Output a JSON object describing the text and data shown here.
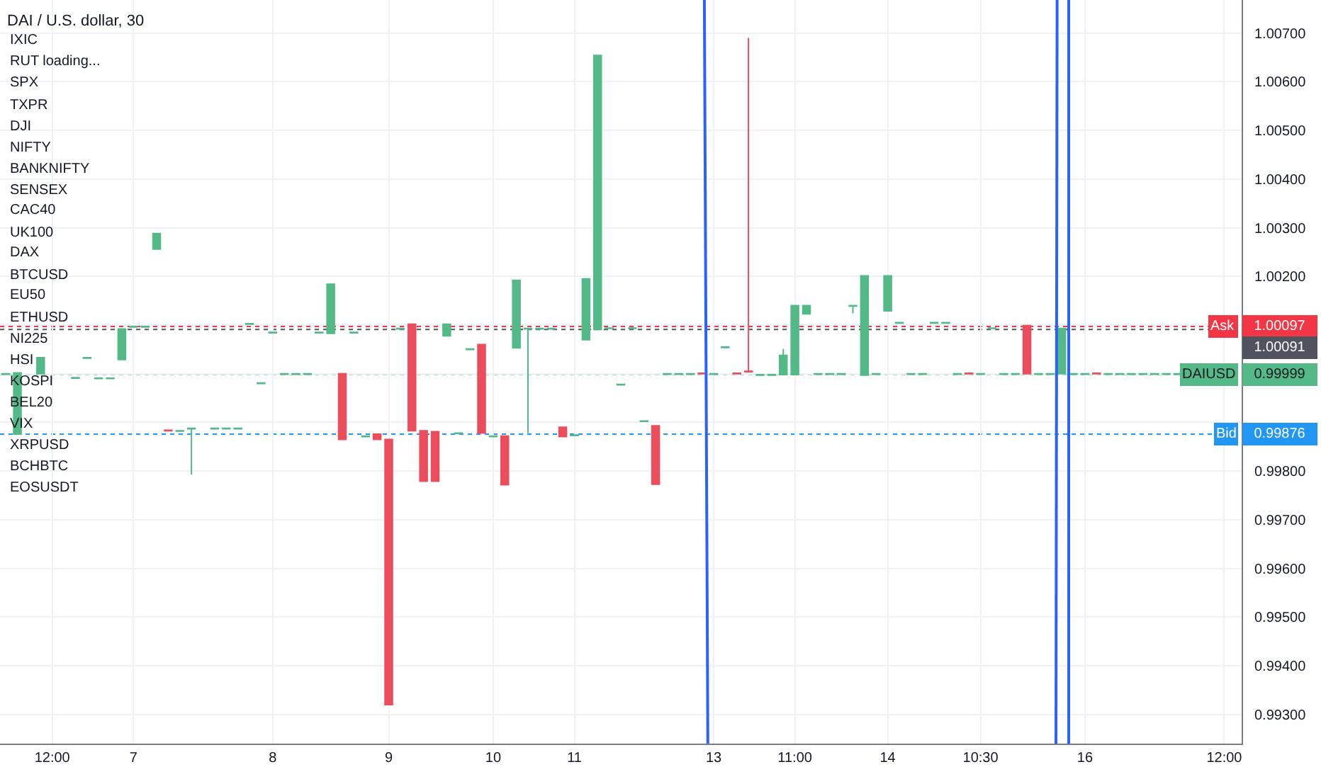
{
  "chart_data": {
    "type": "candlestick",
    "title": "DAI / U.S. dollar, 30",
    "annotations": [
      "IXIC",
      "RUT loading...",
      "SPX",
      "TXPR",
      "DJI",
      "NIFTY",
      "BANKNIFTY",
      "SENSEX",
      "CAC40",
      "UK100",
      "DAX",
      "BTCUSD",
      "EU50",
      "ETHUSD",
      "NI225",
      "HSI",
      "KOSPI",
      "BEL20",
      "VIX",
      "XRPUSD",
      "BCHBTC",
      "EOSUSDT"
    ],
    "categories": [
      null,
      null,
      null,
      null,
      "12:00",
      null,
      null,
      null,
      null,
      null,
      null,
      "7",
      null,
      null,
      null,
      null,
      null,
      null,
      null,
      null,
      null,
      null,
      null,
      "8",
      null,
      null,
      null,
      null,
      null,
      null,
      null,
      null,
      null,
      "9",
      null,
      null,
      null,
      null,
      null,
      null,
      null,
      null,
      "10",
      null,
      null,
      null,
      null,
      null,
      null,
      "11",
      null,
      null,
      null,
      null,
      null,
      null,
      null,
      null,
      null,
      null,
      null,
      "13",
      null,
      null,
      null,
      null,
      null,
      null,
      "11:00",
      null,
      null,
      null,
      null,
      null,
      null,
      null,
      "14",
      null,
      null,
      null,
      null,
      null,
      null,
      null,
      "10:30",
      null,
      null,
      null,
      null,
      null,
      null,
      null,
      null,
      "16",
      null,
      null,
      null,
      null,
      null,
      null,
      null,
      null,
      null,
      null,
      null,
      "12:00",
      null
    ],
    "ohlc": [
      [
        0.99999,
        1.0,
        0.99999,
        1.0
      ],
      [
        0.99876,
        1.00002,
        0.99876,
        1.00002
      ],
      null,
      [
        1.0,
        1.00033,
        1.0,
        1.00033
      ],
      null,
      null,
      [
        0.99991,
        0.99992,
        0.99991,
        0.99992
      ],
      [
        1.00032,
        1.00033,
        1.00032,
        1.00033
      ],
      [
        0.9999,
        0.99991,
        0.9999,
        0.99991
      ],
      [
        0.9999,
        0.99991,
        0.9999,
        0.99991
      ],
      [
        1.00029,
        1.00092,
        1.00029,
        1.00092
      ],
      [
        1.00096,
        1.00097,
        1.00096,
        1.00097
      ],
      [
        1.00096,
        1.00097,
        1.00096,
        1.00097
      ],
      [
        1.00256,
        1.00288,
        1.00256,
        1.00288
      ],
      [
        0.99884,
        0.99884,
        0.99883,
        0.99883
      ],
      [
        0.99882,
        0.99883,
        0.99882,
        0.99883
      ],
      [
        0.99887,
        0.99888,
        0.99793,
        0.99888
      ],
      null,
      [
        0.99887,
        0.99888,
        0.99887,
        0.99888
      ],
      [
        0.99887,
        0.99888,
        0.99887,
        0.99888
      ],
      [
        0.99887,
        0.99888,
        0.99887,
        0.99888
      ],
      [
        1.00102,
        1.00103,
        1.00102,
        1.00103
      ],
      [
        0.9998,
        0.99981,
        0.9998,
        0.99981
      ],
      [
        1.00084,
        1.00085,
        1.00084,
        1.00085
      ],
      [
        0.99999,
        1.0,
        0.99999,
        1.0
      ],
      [
        0.99999,
        1.0,
        0.99999,
        1.0
      ],
      [
        0.99999,
        1.0,
        0.99999,
        1.0
      ],
      [
        1.00084,
        1.00085,
        1.00084,
        1.00085
      ],
      [
        1.00083,
        1.00184,
        1.00083,
        1.00184
      ],
      [
        1.0,
        1.0,
        0.99865,
        0.99865
      ],
      [
        1.00084,
        1.00085,
        1.00084,
        1.00085
      ],
      [
        0.99871,
        0.99872,
        0.99871,
        0.99872
      ],
      [
        0.99876,
        0.99876,
        0.99865,
        0.99865
      ],
      [
        0.99865,
        0.99865,
        0.9932,
        0.9932
      ],
      [
        1.00092,
        1.00093,
        1.00092,
        1.00093
      ],
      [
        1.00102,
        1.00102,
        0.99883,
        0.99883
      ],
      [
        0.99883,
        0.99883,
        0.99779,
        0.99779
      ],
      [
        0.99881,
        0.99881,
        0.99779,
        0.99779
      ],
      [
        1.00078,
        1.00102,
        1.00078,
        1.00102
      ],
      [
        0.99877,
        0.99878,
        0.99877,
        0.99878
      ],
      [
        1.0005,
        1.00051,
        1.0005,
        1.00051
      ],
      [
        1.0006,
        1.0006,
        0.99878,
        0.99878
      ],
      [
        0.99871,
        0.99872,
        0.99871,
        0.99872
      ],
      [
        0.99872,
        0.99872,
        0.99772,
        0.99772
      ],
      [
        1.00053,
        1.00192,
        1.00053,
        1.00192
      ],
      [
        1.00092,
        1.00093,
        0.99878,
        1.00093
      ],
      [
        1.00092,
        1.00093,
        1.00092,
        1.00093
      ],
      [
        1.00092,
        1.00093,
        1.00092,
        1.00093
      ],
      [
        0.9989,
        0.9989,
        0.99871,
        0.99871
      ],
      [
        0.99873,
        0.99874,
        0.99873,
        0.99874
      ],
      [
        1.0007,
        1.00195,
        1.0007,
        1.00195
      ],
      [
        1.00091,
        1.00654,
        1.00091,
        1.00654
      ],
      [
        1.00093,
        1.00094,
        1.00093,
        1.00094
      ],
      [
        0.99977,
        0.99978,
        0.99977,
        0.99978
      ],
      [
        1.00093,
        1.00094,
        1.00093,
        1.00094
      ],
      [
        0.99902,
        0.99903,
        0.99902,
        0.99903
      ],
      [
        0.99893,
        0.99893,
        0.99773,
        0.99773
      ],
      [
        0.99999,
        1.0,
        0.99999,
        1.0
      ],
      [
        0.99999,
        1.0,
        0.99999,
        1.0
      ],
      [
        0.99999,
        1.0,
        0.99999,
        1.0
      ],
      [
        1.00001,
        1.00001,
        1.0,
        1.0
      ],
      [
        0.99999,
        1.0,
        0.99999,
        1.0
      ],
      [
        1.00054,
        1.00055,
        1.00054,
        1.00055
      ],
      [
        1.00001,
        1.00001,
        1.0,
        1.0
      ],
      [
        1.00005,
        1.0069,
        1.00004,
        1.00004
      ],
      [
        0.99997,
        0.99998,
        0.99997,
        0.99998
      ],
      [
        0.99997,
        0.99998,
        0.99997,
        0.99998
      ],
      [
        0.99998,
        1.00051,
        0.99998,
        1.00038
      ],
      [
        0.99998,
        1.0014,
        0.99998,
        1.0014
      ],
      [
        1.00123,
        1.0014,
        1.00123,
        1.0014
      ],
      [
        0.99999,
        1.0,
        0.99999,
        1.0
      ],
      [
        0.99999,
        1.0,
        0.99999,
        1.0
      ],
      [
        0.99999,
        1.0,
        0.99999,
        1.0
      ],
      [
        1.00139,
        1.0014,
        1.00124,
        1.0014
      ],
      [
        0.99997,
        1.00201,
        0.99997,
        1.00201
      ],
      [
        0.99999,
        1.0,
        0.99999,
        1.0
      ],
      [
        1.00129,
        1.00201,
        1.00129,
        1.00201
      ],
      [
        1.00104,
        1.00105,
        1.00104,
        1.00105
      ],
      [
        0.99999,
        1.0,
        0.99999,
        1.0
      ],
      [
        0.99999,
        1.0,
        0.99999,
        1.0
      ],
      [
        1.00104,
        1.00105,
        1.00104,
        1.00105
      ],
      [
        1.00104,
        1.00105,
        1.00104,
        1.00105
      ],
      [
        0.99999,
        1.0,
        0.99999,
        1.0
      ],
      [
        1.00001,
        1.00001,
        1.0,
        1.0
      ],
      [
        0.99999,
        1.0,
        0.99999,
        1.0
      ],
      [
        1.00093,
        1.00094,
        1.00093,
        1.00094
      ],
      [
        0.99999,
        1.0,
        0.99999,
        1.0
      ],
      [
        0.99999,
        1.0,
        0.99999,
        1.0
      ],
      [
        1.00099,
        1.00099,
        1.0,
        1.0
      ],
      [
        0.99999,
        1.0,
        0.99999,
        1.0
      ],
      [
        0.99999,
        1.0,
        0.99999,
        1.0
      ],
      [
        1.0,
        1.00093,
        1.0,
        1.00093
      ],
      [
        0.99999,
        1.0,
        0.99999,
        1.0
      ],
      [
        0.99999,
        1.0,
        0.99999,
        1.0
      ],
      [
        1.00001,
        1.00001,
        1.0,
        1.0
      ],
      [
        0.99999,
        1.0,
        0.99999,
        1.0
      ],
      [
        0.99999,
        1.0,
        0.99999,
        1.0
      ],
      [
        0.99999,
        1.0,
        0.99999,
        1.0
      ],
      [
        0.99999,
        1.0,
        0.99999,
        1.0
      ],
      [
        0.99999,
        1.0,
        0.99999,
        1.0
      ],
      [
        0.99999,
        1.0,
        0.99999,
        1.0
      ],
      [
        0.99999,
        1.0,
        0.99999,
        1.0
      ],
      null,
      null,
      null,
      null,
      null
    ],
    "colors": [
      "#53b987",
      "#53b987",
      null,
      "#53b987",
      null,
      null,
      "#53b987",
      "#53b987",
      "#53b987",
      "#53b987",
      "#53b987",
      "#53b987",
      "#53b987",
      "#53b987",
      "#eb4d5c",
      "#53b987",
      "#53b987",
      null,
      "#53b987",
      "#53b987",
      "#53b987",
      "#53b987",
      "#53b987",
      "#53b987",
      "#53b987",
      "#53b987",
      "#53b987",
      "#53b987",
      "#53b987",
      "#eb4d5c",
      "#53b987",
      "#53b987",
      "#eb4d5c",
      "#eb4d5c",
      "#53b987",
      "#eb4d5c",
      "#eb4d5c",
      "#eb4d5c",
      "#53b987",
      "#53b987",
      "#53b987",
      "#eb4d5c",
      "#53b987",
      "#eb4d5c",
      "#53b987",
      "#53b987",
      "#53b987",
      "#53b987",
      "#eb4d5c",
      "#53b987",
      "#53b987",
      "#53b987",
      "#53b987",
      "#53b987",
      "#53b987",
      "#53b987",
      "#eb4d5c",
      "#53b987",
      "#53b987",
      "#53b987",
      "#eb4d5c",
      "#53b987",
      "#53b987",
      "#eb4d5c",
      "#eb4d5c",
      "#53b987",
      "#53b987",
      "#53b987",
      "#53b987",
      "#53b987",
      "#53b987",
      "#53b987",
      "#53b987",
      "#53b987",
      "#53b987",
      "#53b987",
      "#53b987",
      "#53b987",
      "#53b987",
      "#53b987",
      "#53b987",
      "#53b987",
      "#53b987",
      "#eb4d5c",
      "#53b987",
      "#53b987",
      "#53b987",
      "#53b987",
      "#eb4d5c",
      "#53b987",
      "#53b987",
      "#53b987",
      "#53b987",
      "#53b987",
      "#eb4d5c",
      "#53b987",
      "#53b987",
      "#53b987",
      "#53b987",
      "#53b987",
      "#53b987",
      "#53b987",
      null,
      null,
      null,
      null,
      null
    ],
    "ylim": [
      0.9924,
      1.00768
    ],
    "yticks": [
      {
        "value": 0.993,
        "label": "0.99300"
      },
      {
        "value": 0.994,
        "label": "0.99400"
      },
      {
        "value": 0.995,
        "label": "0.99500"
      },
      {
        "value": 0.996,
        "label": "0.99600"
      },
      {
        "value": 0.997,
        "label": "0.99700"
      },
      {
        "value": 0.998,
        "label": "0.99800"
      },
      {
        "value": 0.99876,
        "label": "0.99876"
      },
      {
        "value": 0.999,
        "label": null
      },
      {
        "value": 0.99999,
        "label": "0.99999"
      },
      {
        "value": 1.0,
        "label": null
      },
      {
        "value": 1.00097,
        "label": "1.00097"
      },
      {
        "value": 1.001,
        "label": null
      },
      {
        "value": 1.002,
        "label": "1.00200"
      },
      {
        "value": 1.003,
        "label": "1.00300"
      },
      {
        "value": 1.004,
        "label": "1.00400"
      },
      {
        "value": 1.005,
        "label": "1.00500"
      },
      {
        "value": 1.006,
        "label": "1.00600"
      },
      {
        "value": 1.007,
        "label": "1.00700"
      }
    ],
    "ref_lines": [
      {
        "axis": "y",
        "value": 1.00097,
        "label": "Ask",
        "color": "#f23645",
        "line_style": "dotted"
      },
      {
        "axis": "y",
        "value": 1.00091,
        "label": "1.00091",
        "color": "#50535e",
        "line_style": "dotted"
      },
      {
        "axis": "y",
        "value": 0.99999,
        "label": "DAIUSD",
        "color": "#53b987",
        "line_style": "dotted"
      },
      {
        "axis": "y",
        "value": 0.99876,
        "label": "Bid",
        "color": "#2196f3",
        "line_style": "dotted"
      }
    ],
    "grid": true
  }
}
